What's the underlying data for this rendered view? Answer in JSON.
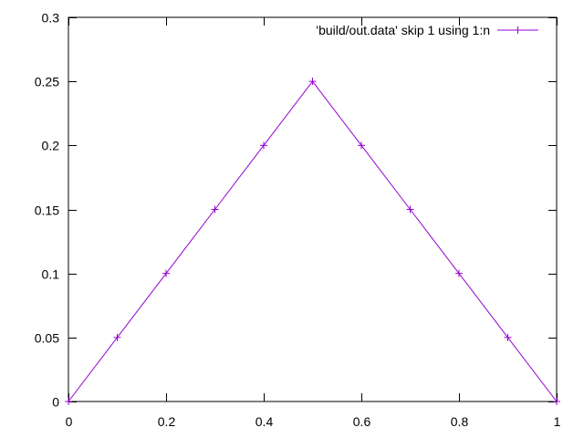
{
  "chart_data": {
    "type": "line",
    "title": "",
    "xlabel": "",
    "ylabel": "",
    "xlim": [
      0,
      1
    ],
    "ylim": [
      0,
      0.3
    ],
    "grid": false,
    "legend_position": "top-right",
    "x_ticks": [
      "0",
      "0.2",
      "0.4",
      "0.6",
      "0.8",
      "1"
    ],
    "y_ticks": [
      "0",
      "0.05",
      "0.1",
      "0.15",
      "0.2",
      "0.25",
      "0.3"
    ],
    "series": [
      {
        "name": "'build/out.data' skip 1 using 1:n",
        "color": "#9400d3",
        "marker": "plus",
        "x": [
          0,
          0.1,
          0.2,
          0.3,
          0.4,
          0.5,
          0.6,
          0.7,
          0.8,
          0.9,
          1
        ],
        "y": [
          0,
          0.05,
          0.1,
          0.15,
          0.2,
          0.25,
          0.2,
          0.15,
          0.1,
          0.05,
          0
        ]
      }
    ]
  }
}
